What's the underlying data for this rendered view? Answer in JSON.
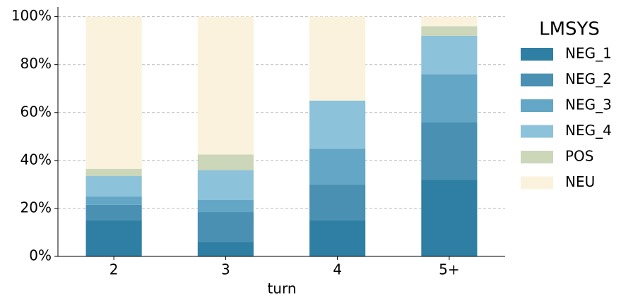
{
  "chart_data": {
    "type": "stacked_bar",
    "x_label": "turn",
    "categories": [
      "2",
      "3",
      "4",
      "5+"
    ],
    "series": [
      {
        "name": "NEG_1",
        "color": "#2e7fa3",
        "values": [
          15,
          6,
          15,
          32
        ]
      },
      {
        "name": "NEG_2",
        "color": "#4990b2",
        "values": [
          6.5,
          12.5,
          15,
          24
        ]
      },
      {
        "name": "NEG_3",
        "color": "#63a6c5",
        "values": [
          3.5,
          5,
          15,
          20
        ]
      },
      {
        "name": "NEG_4",
        "color": "#8cc2da",
        "values": [
          8.5,
          12.5,
          20,
          16
        ]
      },
      {
        "name": "POS",
        "color": "#ccd6b8",
        "values": [
          3,
          6.5,
          0,
          4
        ]
      },
      {
        "name": "NEU",
        "color": "#faf2dc",
        "values": [
          63.5,
          57.5,
          35,
          4
        ]
      }
    ],
    "legend_title": "LMSYS",
    "legend_position": "right",
    "ylim": [
      0,
      104
    ],
    "yticks": [
      {
        "value": 0,
        "label": "0%"
      },
      {
        "value": 20,
        "label": "20%"
      },
      {
        "value": 40,
        "label": "40%"
      },
      {
        "value": 60,
        "label": "60%"
      },
      {
        "value": 80,
        "label": "80%"
      },
      {
        "value": 100,
        "label": "100%"
      }
    ],
    "grid": true
  }
}
